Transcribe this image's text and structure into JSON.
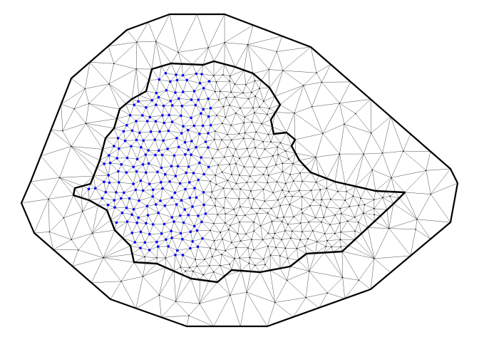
{
  "figure": {
    "type": "triangulated-mesh",
    "has_text": false,
    "boundaries": [
      "outer-domain",
      "inner-region"
    ],
    "colors": {
      "background": "#ffffff",
      "mesh_edges": "#000000",
      "boundary_lines": "#000000",
      "interior_nodes": "#000000",
      "highlighted_nodes": "#0000ff"
    }
  }
}
